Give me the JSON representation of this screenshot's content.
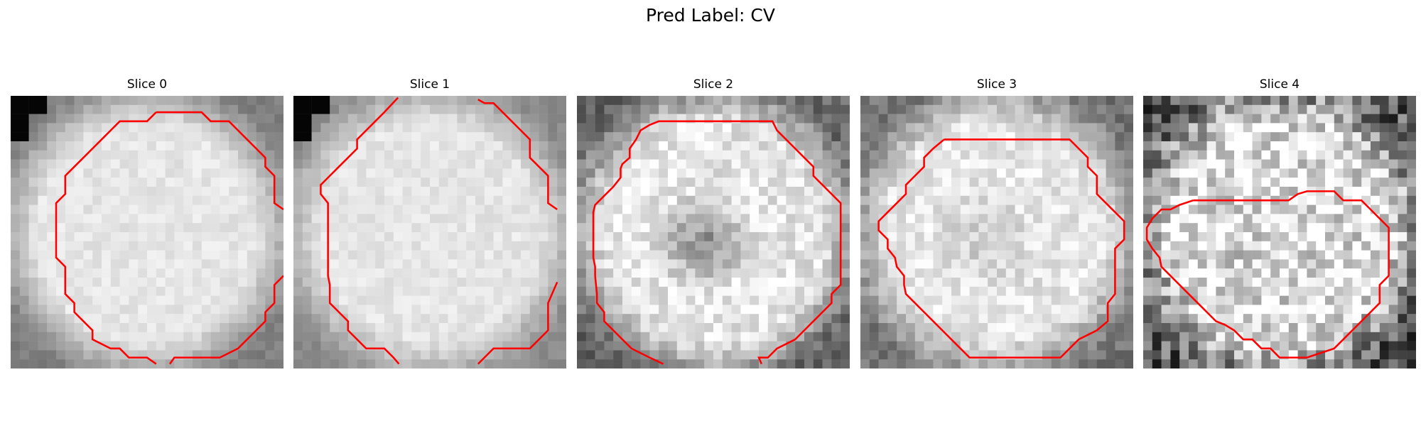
{
  "figure": {
    "title": "Pred Label: CV"
  },
  "panels": [
    {
      "title": "Slice 0",
      "texture": {
        "seed": 11,
        "rim": 0.4,
        "dark_corner": true,
        "center_dark": 0.0,
        "noise": 0.05
      }
    },
    {
      "title": "Slice 1",
      "texture": {
        "seed": 23,
        "rim": 0.35,
        "dark_corner": true,
        "center_dark": 0.0,
        "noise": 0.05
      }
    },
    {
      "title": "Slice 2",
      "texture": {
        "seed": 37,
        "rim": 0.5,
        "dark_corner": false,
        "center_dark": 0.45,
        "noise": 0.12
      }
    },
    {
      "title": "Slice 3",
      "texture": {
        "seed": 41,
        "rim": 0.45,
        "dark_corner": false,
        "center_dark": 0.15,
        "noise": 0.1
      }
    },
    {
      "title": "Slice 4",
      "texture": {
        "seed": 59,
        "rim": 0.55,
        "dark_corner": false,
        "center_dark": 0.05,
        "noise": 0.28
      }
    }
  ],
  "colors": {
    "contour": "#ff0000",
    "background": "#ffffff"
  }
}
